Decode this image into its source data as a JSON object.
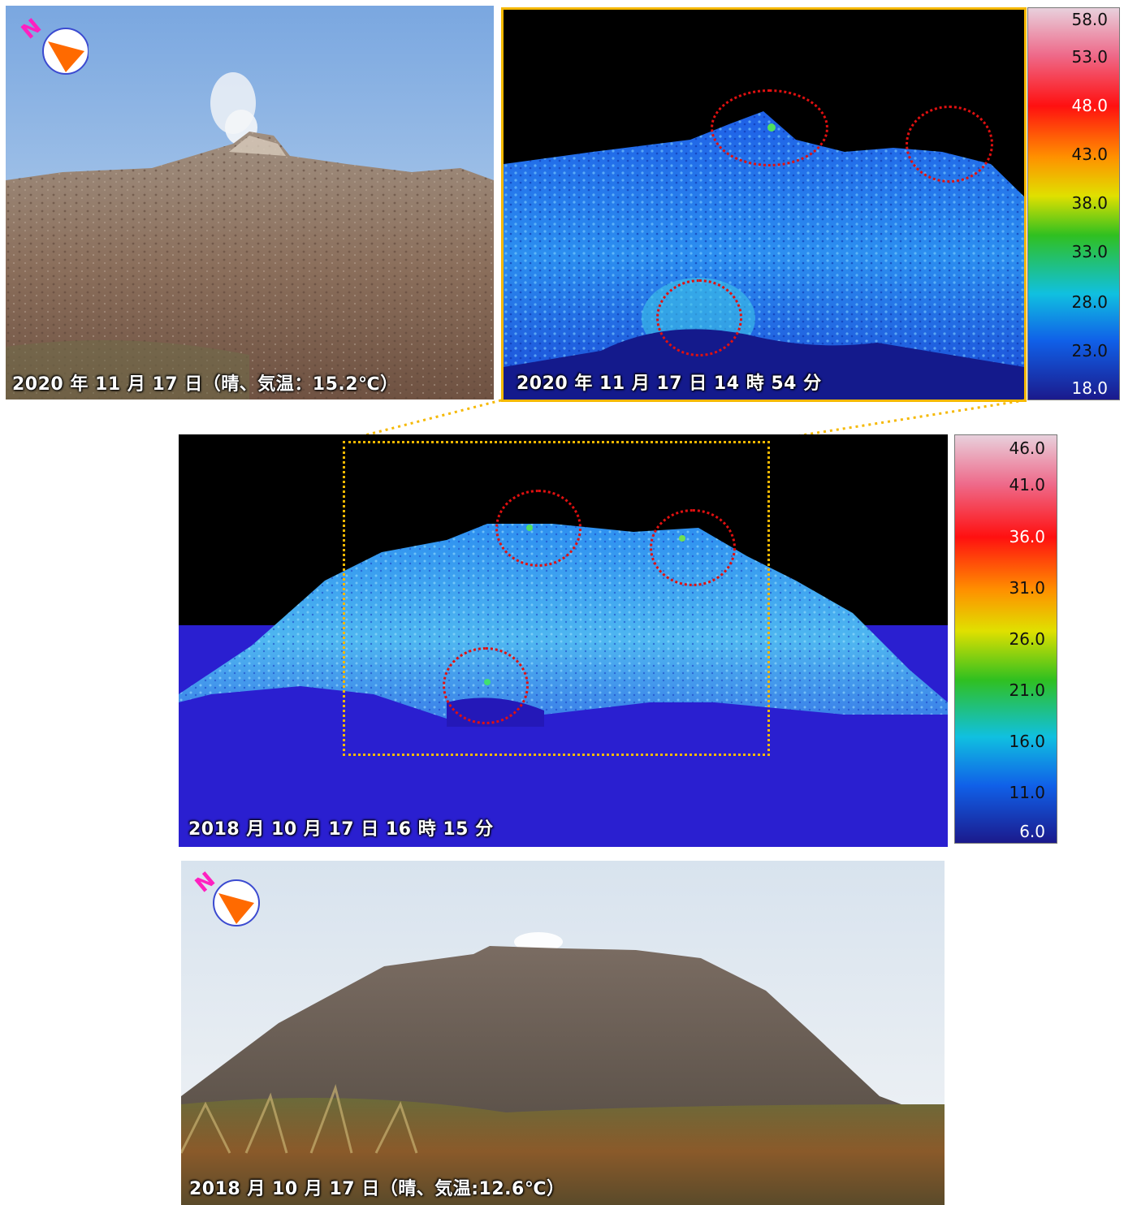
{
  "photo_2020": {
    "caption": "2020 年 11 月 17 日（晴、気温：15.2℃）",
    "compass_letter": "N"
  },
  "thermal_2020": {
    "caption": "2020 年 11 月 17 日 14 時 54 分",
    "scale_labels": [
      "58.0",
      "53.0",
      "48.0",
      "43.0",
      "38.0",
      "33.0",
      "28.0",
      "23.0",
      "18.0"
    ],
    "frame_color": "#f5b800"
  },
  "thermal_2018": {
    "caption": "2018 月 10 月 17 日 16 時 15 分",
    "scale_labels": [
      "46.0",
      "41.0",
      "36.0",
      "31.0",
      "26.0",
      "21.0",
      "16.0",
      "11.0",
      "6.0"
    ],
    "zoom_box_color": "#f5b800"
  },
  "photo_2018": {
    "caption": "2018 月 10 月 17 日（晴、気温:12.6℃）",
    "compass_letter": "N"
  },
  "colors": {
    "ring": "#e01010",
    "compass_arrow": "#ff6a00",
    "compass_n": "#ff20c0",
    "sky_2020": "#8fb6e6",
    "rock": "#8a7160"
  }
}
